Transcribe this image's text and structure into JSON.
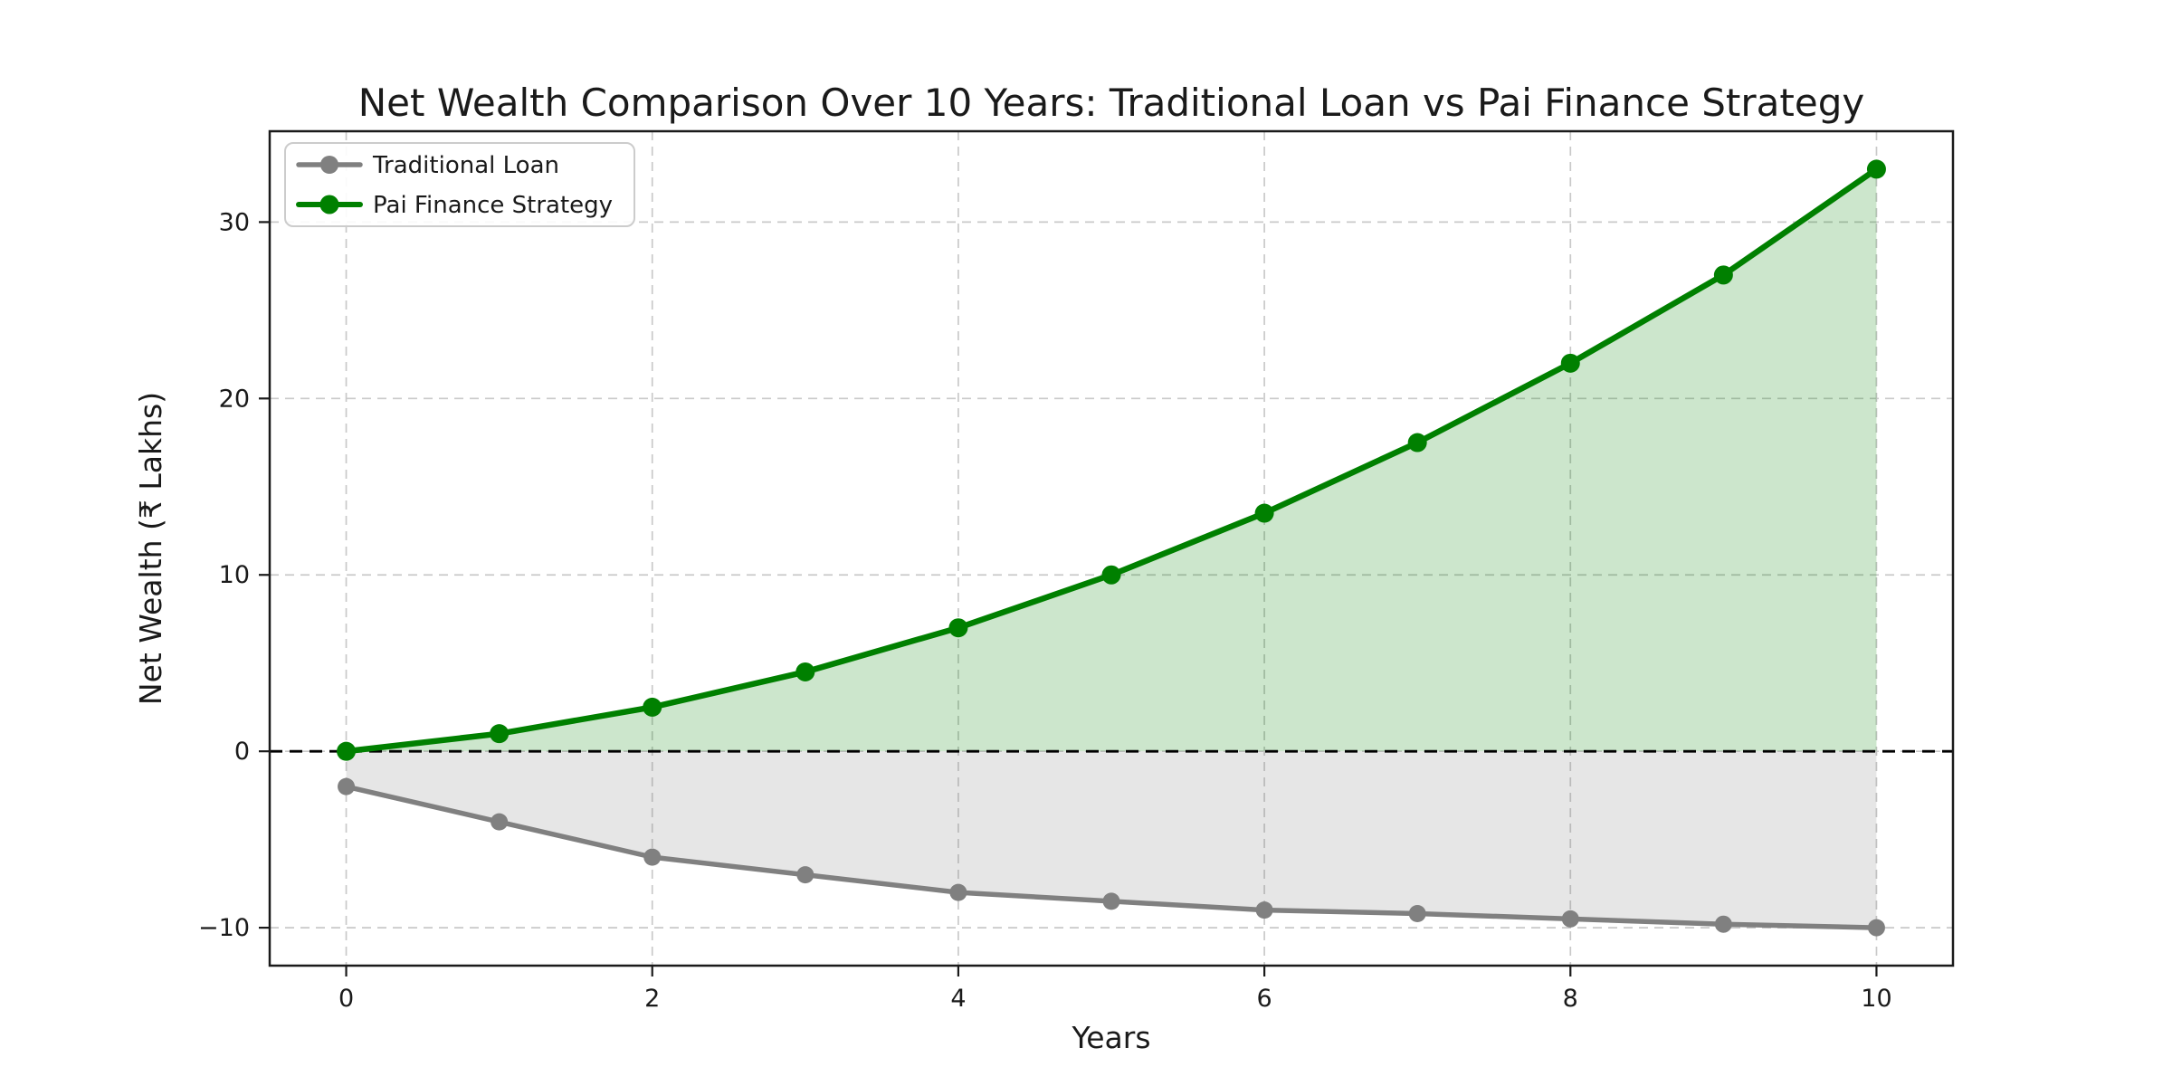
{
  "chart_data": {
    "type": "line",
    "title": "Net Wealth Comparison Over 10 Years: Traditional Loan vs Pai Finance Strategy",
    "xlabel": "Years",
    "ylabel": "Net Wealth (₹ Lakhs)",
    "x": [
      0,
      1,
      2,
      3,
      4,
      5,
      6,
      7,
      8,
      9,
      10
    ],
    "series": [
      {
        "name": "Traditional Loan",
        "color": "#808080",
        "fill_color": "rgba(128,128,128,0.2)",
        "values": [
          -2,
          -4,
          -6,
          -7,
          -8,
          -8.5,
          -9,
          -9.2,
          -9.5,
          -9.8,
          -10
        ],
        "marker": "circle",
        "fill_to_zero": true
      },
      {
        "name": "Pai Finance Strategy",
        "color": "#008000",
        "fill_color": "rgba(0,128,0,0.2)",
        "values": [
          0,
          1,
          2.5,
          4.5,
          7,
          10,
          13.5,
          17.5,
          22,
          27,
          33
        ],
        "marker": "circle",
        "fill_to_zero": true
      }
    ],
    "xticks": {
      "values": [
        0,
        2,
        4,
        6,
        8,
        10
      ],
      "labels": [
        "0",
        "2",
        "4",
        "6",
        "8",
        "10"
      ]
    },
    "yticks": {
      "values": [
        -10,
        0,
        10,
        20,
        30
      ],
      "labels": [
        "−10",
        "0",
        "10",
        "20",
        "30"
      ]
    },
    "xlim": [
      -0.5,
      10.5
    ],
    "ylim": [
      -12.15,
      35.15
    ],
    "grid": {
      "on": true,
      "style": "dashed",
      "color": "#c9c9c9"
    },
    "zero_line": {
      "value": 0,
      "style": "dashed",
      "color": "#000000"
    },
    "legend": {
      "position": "upper left"
    }
  }
}
